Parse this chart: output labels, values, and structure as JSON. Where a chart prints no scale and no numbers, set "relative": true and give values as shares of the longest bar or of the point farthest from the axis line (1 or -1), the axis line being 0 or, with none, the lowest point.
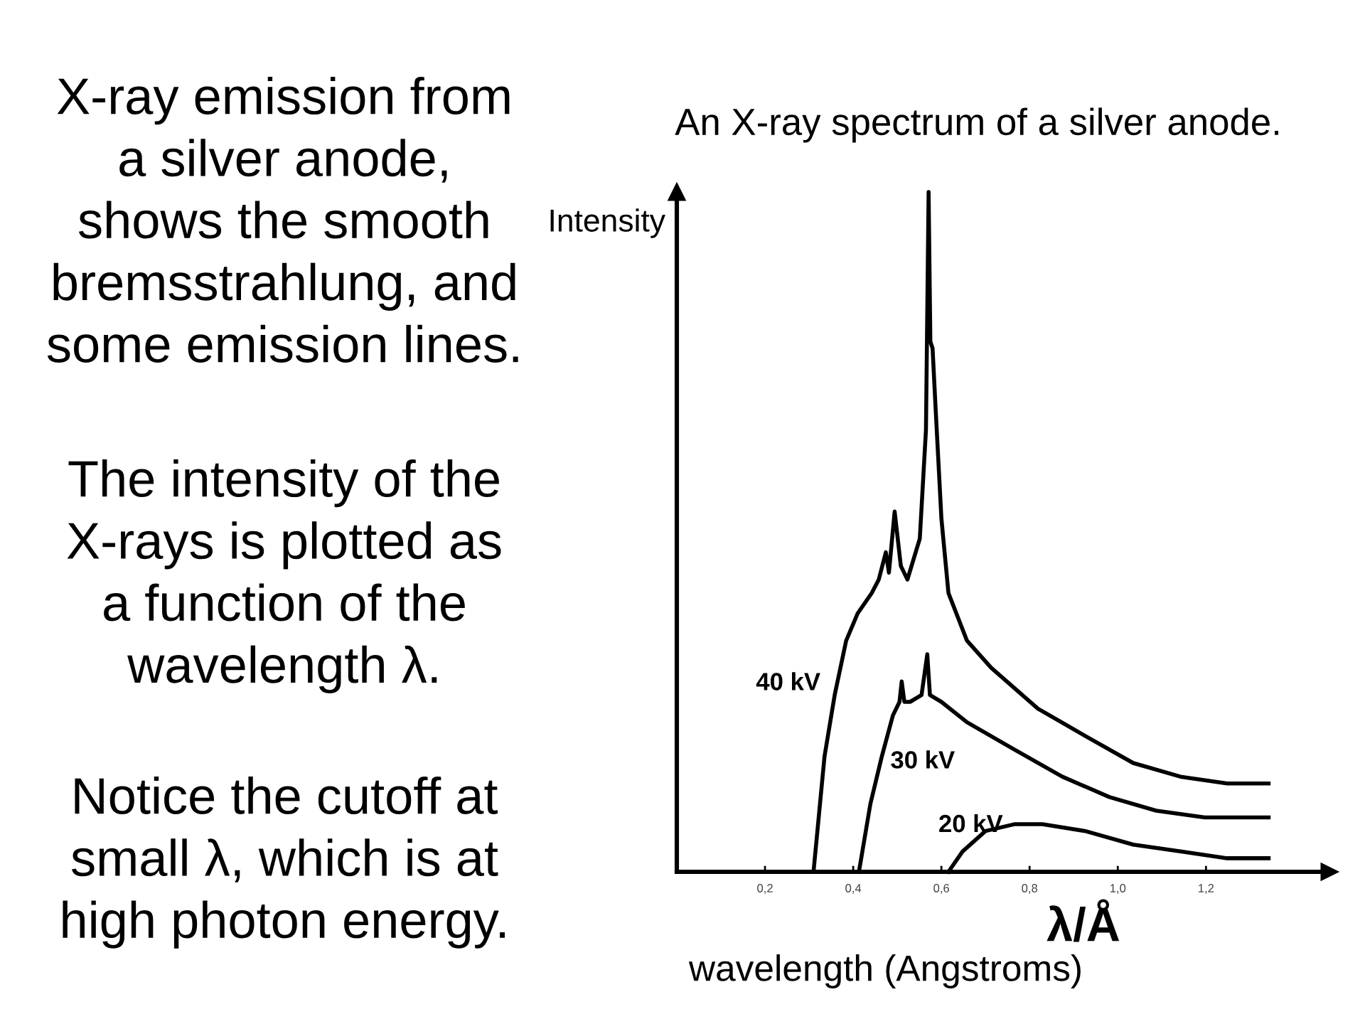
{
  "chart_data": {
    "type": "line",
    "title": "An X-ray spectrum of a silver anode.",
    "xlabel": "wavelength (Angstroms)",
    "ylabel": "Intensity",
    "relative": true,
    "xlim": [
      0,
      1.48
    ],
    "xticks": [
      {
        "value": 0.2,
        "label": "0,2"
      },
      {
        "value": 0.4,
        "label": "0,4"
      },
      {
        "value": 0.6,
        "label": "0,6"
      },
      {
        "value": 0.8,
        "label": "0,8"
      },
      {
        "value": 1.0,
        "label": "1,0"
      },
      {
        "value": 1.2,
        "label": "1,2"
      }
    ],
    "series": [
      {
        "name": "40 kV",
        "color": "#000000",
        "x": [
          0.31,
          0.335,
          0.358,
          0.384,
          0.41,
          0.442,
          0.458,
          0.474,
          0.481,
          0.494,
          0.508,
          0.523,
          0.551,
          0.565,
          0.571,
          0.575,
          0.58,
          0.587,
          0.6,
          0.616,
          0.658,
          0.713,
          0.819,
          0.926,
          1.035,
          1.142,
          1.248,
          1.342
        ],
        "values": [
          0,
          0.17,
          0.26,
          0.34,
          0.38,
          0.41,
          0.43,
          0.47,
          0.44,
          0.53,
          0.45,
          0.43,
          0.49,
          0.65,
          1.0,
          0.78,
          0.77,
          0.68,
          0.52,
          0.41,
          0.34,
          0.3,
          0.24,
          0.2,
          0.16,
          0.14,
          0.13,
          0.13
        ]
      },
      {
        "name": "30 kV",
        "color": "#000000",
        "x": [
          0.413,
          0.439,
          0.465,
          0.49,
          0.505,
          0.51,
          0.516,
          0.529,
          0.555,
          0.568,
          0.574,
          0.6,
          0.658,
          0.765,
          0.874,
          0.981,
          1.087,
          1.197,
          1.342
        ],
        "values": [
          0,
          0.1,
          0.17,
          0.23,
          0.25,
          0.28,
          0.25,
          0.25,
          0.26,
          0.32,
          0.26,
          0.25,
          0.22,
          0.18,
          0.14,
          0.11,
          0.09,
          0.08,
          0.08
        ]
      },
      {
        "name": "20 kV",
        "color": "#000000",
        "x": [
          0.616,
          0.648,
          0.7,
          0.765,
          0.829,
          0.926,
          1.035,
          1.142,
          1.248,
          1.342
        ],
        "values": [
          0,
          0.03,
          0.06,
          0.07,
          0.07,
          0.06,
          0.04,
          0.03,
          0.02,
          0.02
        ]
      }
    ],
    "annotations": [
      "X-ray emission from\na silver anode,\nshows the smooth\nbremsstrahlung, and\nsome emission lines.",
      "The intensity of the\nX-rays is plotted as\na function of the\nwavelength λ.",
      "Notice the cutoff at\nsmall λ, which is at\nhigh photon energy.",
      "λ/Å"
    ]
  }
}
